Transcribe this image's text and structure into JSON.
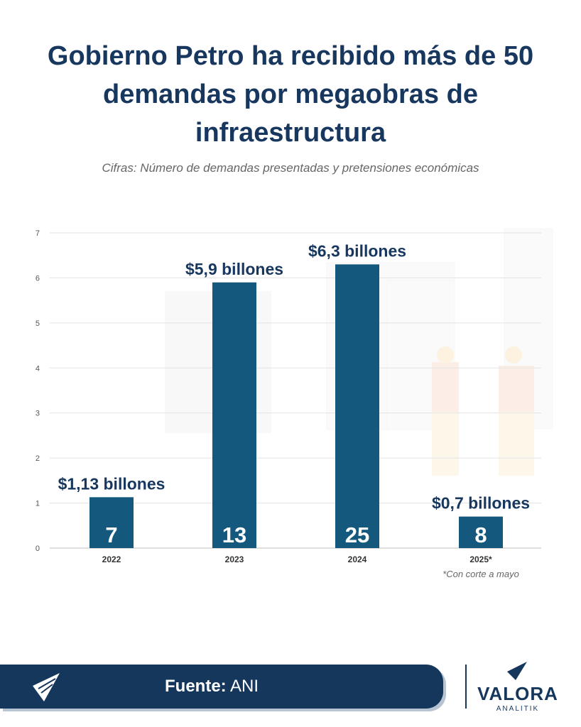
{
  "title": "Gobierno Petro ha recibido más de 50 demandas por megaobras de infraestructura",
  "subtitle": "Cifras: Número de demandas presentadas y pretensiones económicas",
  "chart_data": {
    "type": "bar",
    "categories": [
      "2022",
      "2023",
      "2024",
      "2025*"
    ],
    "values": [
      1.13,
      5.9,
      6.3,
      0.7
    ],
    "value_labels": [
      "$1,13 billones",
      "$5,9 billones",
      "$6,3 billones",
      "$0,7 billones"
    ],
    "bar_counts": [
      "7",
      "13",
      "25",
      "8"
    ],
    "yticks": [
      "0",
      "1",
      "2",
      "3",
      "4",
      "5",
      "6",
      "7"
    ],
    "ylim": [
      0,
      7
    ],
    "grid": true,
    "bar_color": "#14597d",
    "note": "*Con corte a mayo"
  },
  "footer": {
    "source_label": "Fuente:",
    "source_value": "ANI",
    "brand_name": "VALORA",
    "brand_sub": "ANALITIK",
    "bar_color": "#16375c"
  }
}
